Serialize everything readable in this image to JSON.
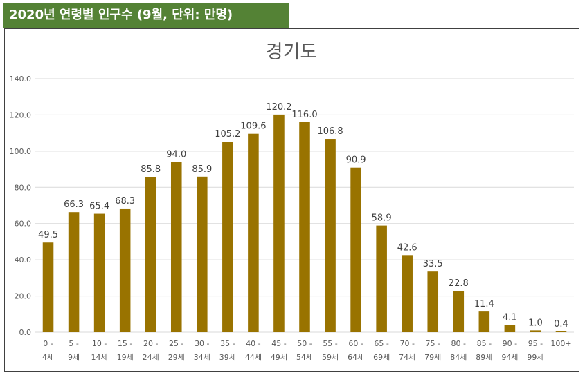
{
  "header": {
    "title": "2020년 연령별 인구수 (9월, 단위: 만명)"
  },
  "colors": {
    "header_bg": "#548235",
    "bar": "#997300",
    "grid": "#d9d9d9"
  },
  "chart_data": {
    "type": "bar",
    "title": "경기도",
    "xlabel": "",
    "ylabel": "",
    "ylim": [
      0,
      140
    ],
    "yticks": [
      "0.0",
      "20.0",
      "40.0",
      "60.0",
      "80.0",
      "100.0",
      "120.0",
      "140.0"
    ],
    "grid": true,
    "legend": "none",
    "categories": [
      [
        "0 -",
        "4세"
      ],
      [
        "5 -",
        "9세"
      ],
      [
        "10 -",
        "14세"
      ],
      [
        "15 -",
        "19세"
      ],
      [
        "20 -",
        "24세"
      ],
      [
        "25 -",
        "29세"
      ],
      [
        "30 -",
        "34세"
      ],
      [
        "35 -",
        "39세"
      ],
      [
        "40 -",
        "44세"
      ],
      [
        "45 -",
        "49세"
      ],
      [
        "50 -",
        "54세"
      ],
      [
        "55 -",
        "59세"
      ],
      [
        "60 -",
        "64세"
      ],
      [
        "65 -",
        "69세"
      ],
      [
        "70 -",
        "74세"
      ],
      [
        "75 -",
        "79세"
      ],
      [
        "80 -",
        "84세"
      ],
      [
        "85 -",
        "89세"
      ],
      [
        "90 -",
        "94세"
      ],
      [
        "95 -",
        "99세"
      ],
      [
        "100+",
        ""
      ]
    ],
    "values": [
      49.5,
      66.3,
      65.4,
      68.3,
      85.8,
      94.0,
      85.9,
      105.2,
      109.6,
      120.2,
      116.0,
      106.8,
      90.9,
      58.9,
      42.6,
      33.5,
      22.8,
      11.4,
      4.1,
      1.0,
      0.4
    ],
    "data_labels": [
      "49.5",
      "66.3",
      "65.4",
      "68.3",
      "85.8",
      "94.0",
      "85.9",
      "105.2",
      "109.6",
      "120.2",
      "116.0",
      "106.8",
      "90.9",
      "58.9",
      "42.6",
      "33.5",
      "22.8",
      "11.4",
      "4.1",
      "1.0",
      "0.4"
    ]
  }
}
